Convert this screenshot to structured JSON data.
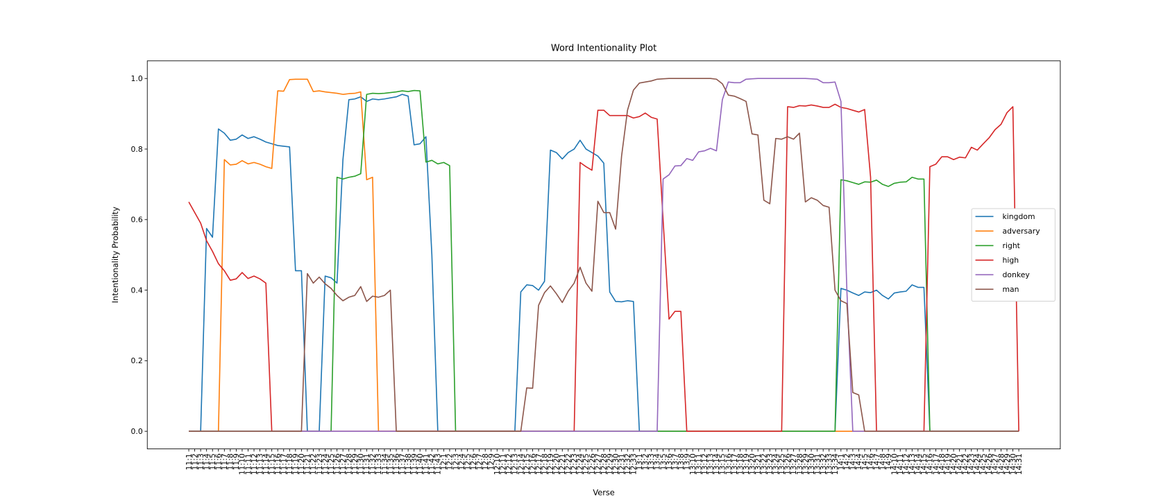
{
  "chart_data": {
    "type": "line",
    "title": "Word Intentionality Plot",
    "x_label": "Verse",
    "y_label": "Intentionality Probability",
    "ylim": [
      -0.05,
      1.05
    ],
    "yticks": [
      {
        "value": 0,
        "label": "0.0"
      },
      {
        "value": 0.2,
        "label": "0.2"
      },
      {
        "value": 0.4,
        "label": "0.4"
      },
      {
        "value": 0.6,
        "label": "0.6"
      },
      {
        "value": 0.8,
        "label": "0.8"
      },
      {
        "value": 1,
        "label": "1.0"
      }
    ],
    "grid": false,
    "legend": "center right",
    "categories": [
      "11:1",
      "11:2",
      "11:3",
      "11:4",
      "11:5",
      "11:6",
      "11:7",
      "11:8",
      "11:9",
      "11:10",
      "11:11",
      "11:12",
      "11:13",
      "11:14",
      "11:15",
      "11:16",
      "11:17",
      "11:18",
      "11:19",
      "11:20",
      "11:21",
      "11:22",
      "11:23",
      "11:24",
      "11:25",
      "11:26",
      "11:27",
      "11:28",
      "11:29",
      "11:30",
      "11:31",
      "11:32",
      "11:33",
      "11:34",
      "11:35",
      "11:36",
      "11:37",
      "11:38",
      "11:39",
      "11:40",
      "11:41",
      "11:42",
      "11:43",
      "12:1",
      "12:2",
      "12:3",
      "12:4",
      "12:5",
      "12:6",
      "12:7",
      "12:8",
      "12:9",
      "12:10",
      "12:11",
      "12:12",
      "12:13",
      "12:14",
      "12:15",
      "12:16",
      "12:17",
      "12:18",
      "12:19",
      "12:20",
      "12:21",
      "12:22",
      "12:23",
      "12:24",
      "12:25",
      "12:26",
      "12:27",
      "12:28",
      "12:29",
      "12:30",
      "12:31",
      "12:32",
      "12:33",
      "13:1",
      "13:2",
      "13:3",
      "13:4",
      "13:5",
      "13:6",
      "13:7",
      "13:8",
      "13:9",
      "13:10",
      "13:11",
      "13:12",
      "13:13",
      "13:14",
      "13:15",
      "13:16",
      "13:17",
      "13:18",
      "13:19",
      "13:20",
      "13:21",
      "13:22",
      "13:23",
      "13:24",
      "13:25",
      "13:26",
      "13:27",
      "13:28",
      "13:29",
      "13:30",
      "13:31",
      "13:32",
      "13:33",
      "13:34",
      "14:1",
      "14:2",
      "14:3",
      "14:4",
      "14:5",
      "14:6",
      "14:7",
      "14:8",
      "14:9",
      "14:10",
      "14:11",
      "14:12",
      "14:13",
      "14:14",
      "14:15",
      "14:16",
      "14:17",
      "14:18",
      "14:19",
      "14:20",
      "14:21",
      "14:22",
      "14:23",
      "14:24",
      "14:25",
      "14:26",
      "14:27",
      "14:28",
      "14:29",
      "14:30",
      "14:31"
    ],
    "series": [
      {
        "name": "kingdom",
        "color": "#1f77b4",
        "values": [
          0,
          0,
          0,
          0.575,
          0.55,
          0.857,
          0.845,
          0.825,
          0.828,
          0.84,
          0.83,
          0.835,
          0.828,
          0.82,
          0.815,
          0.81,
          0.808,
          0.806,
          0.455,
          0.455,
          0,
          0,
          0,
          0.44,
          0.435,
          0.42,
          0.77,
          0.94,
          0.942,
          0.948,
          0.935,
          0.942,
          0.94,
          0.942,
          0.945,
          0.948,
          0.955,
          0.95,
          0.812,
          0.815,
          0.835,
          0.5,
          0,
          0,
          0,
          0,
          0,
          0,
          0,
          0,
          0,
          0,
          0,
          0,
          0,
          0,
          0.395,
          0.415,
          0.413,
          0.4,
          0.425,
          0.797,
          0.79,
          0.772,
          0.79,
          0.8,
          0.825,
          0.8,
          0.79,
          0.78,
          0.76,
          0.395,
          0.368,
          0.367,
          0.37,
          0.368,
          0,
          0,
          0,
          0,
          0,
          0,
          0,
          0,
          0,
          0,
          0,
          0,
          0,
          0,
          0,
          0,
          0,
          0,
          0,
          0,
          0,
          0,
          0,
          0,
          0,
          0,
          0,
          0,
          0,
          0,
          0,
          0,
          0,
          0,
          0.405,
          0.4,
          0.392,
          0.385,
          0.395,
          0.393,
          0.4,
          0.385,
          0.375,
          0.392,
          0.395,
          0.397,
          0.415,
          0.408,
          0.408,
          0,
          0,
          0,
          0,
          0,
          0,
          0,
          0,
          0,
          0,
          0,
          0,
          0,
          0,
          0,
          0
        ]
      },
      {
        "name": "adversary",
        "color": "#ff7f0e",
        "values": [
          0,
          0,
          0,
          0,
          0,
          0,
          0.77,
          0.755,
          0.757,
          0.767,
          0.758,
          0.762,
          0.757,
          0.75,
          0.745,
          0.965,
          0.964,
          0.997,
          0.998,
          0.998,
          0.998,
          0.963,
          0.965,
          0.962,
          0.96,
          0.958,
          0.955,
          0.957,
          0.958,
          0.962,
          0.713,
          0.72,
          0,
          0,
          0,
          0,
          0,
          0,
          0,
          0,
          0,
          0,
          0,
          0,
          0,
          0,
          0,
          0,
          0,
          0,
          0,
          0,
          0,
          0,
          0,
          0,
          0,
          0,
          0,
          0,
          0,
          0,
          0,
          0,
          0,
          0,
          0,
          0,
          0,
          0,
          0,
          0,
          0,
          0,
          0,
          0,
          0,
          0,
          0,
          0,
          0,
          0,
          0,
          0,
          0,
          0,
          0,
          0,
          0,
          0,
          0,
          0,
          0,
          0,
          0,
          0,
          0,
          0,
          0,
          0,
          0,
          0,
          0,
          0,
          0,
          0,
          0,
          0,
          0,
          0,
          0,
          0,
          0,
          0,
          0,
          0,
          0,
          0,
          0,
          0,
          0,
          0,
          0,
          0,
          0,
          0,
          0,
          0,
          0,
          0,
          0,
          0,
          0,
          0,
          0,
          0,
          0,
          0,
          0,
          0,
          0
        ]
      },
      {
        "name": "right",
        "color": "#2ca02c",
        "values": [
          0,
          0,
          0,
          0,
          0,
          0,
          0,
          0,
          0,
          0,
          0,
          0,
          0,
          0,
          0,
          0,
          0,
          0,
          0,
          0,
          0,
          0,
          0,
          0,
          0,
          0.72,
          0.715,
          0.72,
          0.723,
          0.73,
          0.955,
          0.958,
          0.957,
          0.958,
          0.96,
          0.962,
          0.965,
          0.963,
          0.966,
          0.965,
          0.763,
          0.768,
          0.758,
          0.762,
          0.753,
          0,
          0,
          0,
          0,
          0,
          0,
          0,
          0,
          0,
          0,
          0,
          0,
          0,
          0,
          0,
          0,
          0,
          0,
          0,
          0,
          0,
          0,
          0,
          0,
          0,
          0,
          0,
          0,
          0,
          0,
          0,
          0,
          0,
          0,
          0,
          0,
          0,
          0,
          0,
          0,
          0,
          0,
          0,
          0,
          0,
          0,
          0,
          0,
          0,
          0,
          0,
          0,
          0,
          0,
          0,
          0,
          0,
          0,
          0,
          0,
          0,
          0,
          0,
          0,
          0,
          0.713,
          0.71,
          0.705,
          0.7,
          0.707,
          0.706,
          0.712,
          0.7,
          0.694,
          0.703,
          0.706,
          0.707,
          0.72,
          0.715,
          0.715,
          0,
          0,
          0,
          0,
          0,
          0,
          0,
          0,
          0,
          0,
          0,
          0,
          0,
          0,
          0,
          0
        ]
      },
      {
        "name": "high",
        "color": "#d62728",
        "values": [
          0.65,
          0.62,
          0.59,
          0.54,
          0.51,
          0.475,
          0.455,
          0.428,
          0.432,
          0.45,
          0.433,
          0.44,
          0.432,
          0.42,
          0,
          0,
          0,
          0,
          0,
          0,
          0,
          0,
          0,
          0,
          0,
          0,
          0,
          0,
          0,
          0,
          0,
          0,
          0,
          0,
          0,
          0,
          0,
          0,
          0,
          0,
          0,
          0,
          0,
          0,
          0,
          0,
          0,
          0,
          0,
          0,
          0,
          0,
          0,
          0,
          0,
          0,
          0,
          0,
          0,
          0,
          0,
          0,
          0,
          0,
          0,
          0,
          0.762,
          0.75,
          0.74,
          0.91,
          0.91,
          0.895,
          0.895,
          0.895,
          0.895,
          0.888,
          0.892,
          0.902,
          0.89,
          0.885,
          0.6,
          0.318,
          0.34,
          0.34,
          0,
          0,
          0,
          0,
          0,
          0,
          0,
          0,
          0,
          0,
          0,
          0,
          0,
          0,
          0,
          0,
          0,
          0.92,
          0.918,
          0.923,
          0.922,
          0.925,
          0.922,
          0.918,
          0.918,
          0.927,
          0.918,
          0.915,
          0.91,
          0.905,
          0.912,
          0.72,
          0,
          0,
          0,
          0,
          0,
          0,
          0,
          0,
          0,
          0.75,
          0.757,
          0.778,
          0.778,
          0.77,
          0.777,
          0.775,
          0.805,
          0.797,
          0.815,
          0.832,
          0.855,
          0.87,
          0.903,
          0.92,
          0
        ]
      },
      {
        "name": "donkey",
        "color": "#9467bd",
        "values": [
          0,
          0,
          0,
          0,
          0,
          0,
          0,
          0,
          0,
          0,
          0,
          0,
          0,
          0,
          0,
          0,
          0,
          0,
          0,
          0,
          0,
          0,
          0,
          0,
          0,
          0,
          0,
          0,
          0,
          0,
          0,
          0,
          0,
          0,
          0,
          0,
          0,
          0,
          0,
          0,
          0,
          0,
          0,
          0,
          0,
          0,
          0,
          0,
          0,
          0,
          0,
          0,
          0,
          0,
          0,
          0,
          0,
          0,
          0,
          0,
          0,
          0,
          0,
          0,
          0,
          0,
          0,
          0,
          0,
          0,
          0,
          0,
          0,
          0,
          0,
          0,
          0,
          0,
          0,
          0,
          0.715,
          0.727,
          0.752,
          0.753,
          0.773,
          0.768,
          0.792,
          0.795,
          0.802,
          0.795,
          0.94,
          0.99,
          0.988,
          0.988,
          0.998,
          0.999,
          1,
          1,
          1,
          1,
          1,
          1,
          1,
          1,
          1,
          0.999,
          0.998,
          0.988,
          0.988,
          0.99,
          0.935,
          0.4,
          0,
          0,
          0,
          0,
          0,
          0,
          0,
          0,
          0,
          0,
          0,
          0,
          0,
          0,
          0,
          0,
          0,
          0,
          0,
          0,
          0,
          0,
          0,
          0,
          0,
          0,
          0,
          0,
          0
        ]
      },
      {
        "name": "man",
        "color": "#8c564b",
        "values": [
          0,
          0,
          0,
          0,
          0,
          0,
          0,
          0,
          0,
          0,
          0,
          0,
          0,
          0,
          0,
          0,
          0,
          0,
          0,
          0,
          0.447,
          0.42,
          0.437,
          0.418,
          0.405,
          0.385,
          0.37,
          0.38,
          0.385,
          0.41,
          0.368,
          0.383,
          0.38,
          0.385,
          0.4,
          0,
          0,
          0,
          0,
          0,
          0,
          0,
          0,
          0,
          0,
          0,
          0,
          0,
          0,
          0,
          0,
          0,
          0,
          0,
          0,
          0,
          0,
          0.123,
          0.122,
          0.357,
          0.393,
          0.412,
          0.39,
          0.365,
          0.397,
          0.42,
          0.465,
          0.42,
          0.397,
          0.652,
          0.62,
          0.62,
          0.573,
          0.78,
          0.91,
          0.967,
          0.987,
          0.99,
          0.993,
          0.998,
          0.999,
          1,
          1,
          1,
          1,
          1,
          1,
          1,
          1,
          0.998,
          0.985,
          0.953,
          0.95,
          0.943,
          0.935,
          0.843,
          0.84,
          0.655,
          0.645,
          0.83,
          0.828,
          0.835,
          0.828,
          0.845,
          0.65,
          0.662,
          0.655,
          0.64,
          0.635,
          0.4,
          0.37,
          0.362,
          0.11,
          0.103,
          0,
          0,
          0,
          0,
          0,
          0,
          0,
          0,
          0,
          0,
          0,
          0,
          0,
          0,
          0,
          0,
          0,
          0,
          0,
          0,
          0,
          0,
          0,
          0,
          0,
          0,
          0
        ]
      }
    ]
  }
}
